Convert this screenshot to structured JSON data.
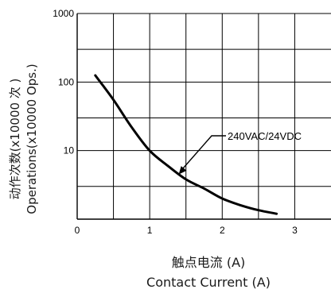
{
  "chart_data": {
    "type": "line",
    "x_scale": "linear",
    "y_scale": "log",
    "xlim": [
      0,
      3.5
    ],
    "ylim": [
      1,
      1000
    ],
    "x_ticks": [
      "0",
      "1",
      "2",
      "3"
    ],
    "y_ticks": [
      "10",
      "100",
      "1000"
    ],
    "xlabel": [
      "触点电流 (A)",
      "Contact Current (A)"
    ],
    "ylabel": [
      "动作次数(x10000 次 )",
      "Operations(x10000 Ops.)"
    ],
    "grid": true,
    "series": [
      {
        "name": "240VAC/24VDC",
        "x": [
          0.25,
          0.5,
          0.75,
          1.0,
          1.25,
          1.5,
          1.75,
          2.0,
          2.25,
          2.5,
          2.75
        ],
        "y": [
          125,
          55,
          22,
          10,
          6,
          3.8,
          2.8,
          2.0,
          1.6,
          1.35,
          1.2
        ]
      }
    ],
    "annotation": {
      "text": "240VAC/24VDC",
      "target_x": 1.4,
      "target_y": 4.5
    }
  }
}
